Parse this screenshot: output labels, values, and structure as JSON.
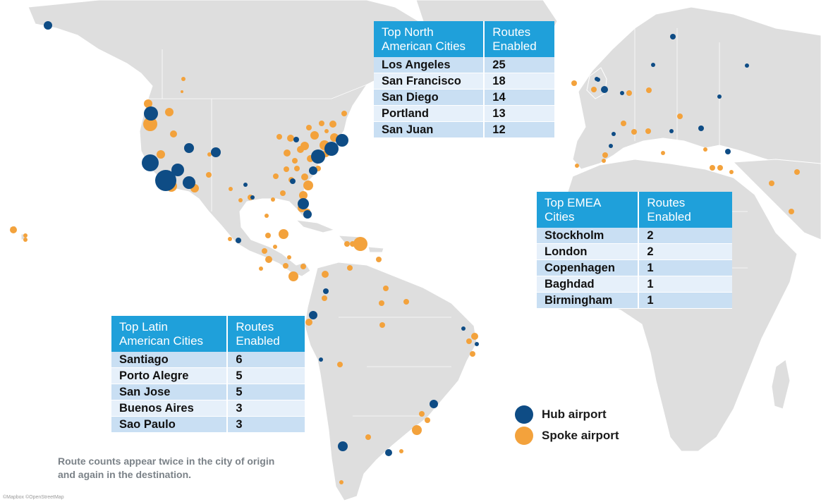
{
  "tables": {
    "north_america": {
      "headers": [
        "Top North American Cities",
        "Routes Enabled"
      ],
      "rows": [
        {
          "city": "Los Angeles",
          "routes": "25"
        },
        {
          "city": "San Francisco",
          "routes": "18"
        },
        {
          "city": "San Diego",
          "routes": "14"
        },
        {
          "city": "Portland",
          "routes": "13"
        },
        {
          "city": "San Juan",
          "routes": "12"
        }
      ]
    },
    "emea": {
      "headers": [
        "Top EMEA Cities",
        "Routes Enabled"
      ],
      "rows": [
        {
          "city": "Stockholm",
          "routes": "2"
        },
        {
          "city": "London",
          "routes": "2"
        },
        {
          "city": "Copenhagen",
          "routes": "1"
        },
        {
          "city": "Baghdad",
          "routes": "1"
        },
        {
          "city": "Birmingham",
          "routes": "1"
        }
      ]
    },
    "latin_america": {
      "headers": [
        "Top Latin American Cities",
        "Routes Enabled"
      ],
      "rows": [
        {
          "city": "Santiago",
          "routes": "6"
        },
        {
          "city": "Porto Alegre",
          "routes": "5"
        },
        {
          "city": "San Jose",
          "routes": "5"
        },
        {
          "city": "Buenos Aires",
          "routes": "3"
        },
        {
          "city": "Sao Paulo",
          "routes": "3"
        }
      ]
    }
  },
  "legend": {
    "hub_label": "Hub airport",
    "spoke_label": "Spoke airport"
  },
  "footnote": "Route counts appear twice in the city of origin and again in the destination.",
  "credit": "©Mapbox ©OpenStreetMap",
  "colors": {
    "hub": "#0e4c85",
    "spoke": "#f3a23c",
    "table_header": "#1fa0da",
    "row_dark": "#c9dff3",
    "row_light": "#e6f0fa",
    "land": "#dedede"
  }
}
